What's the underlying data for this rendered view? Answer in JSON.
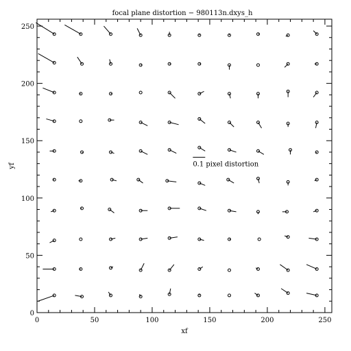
{
  "chart_data": {
    "type": "scatter",
    "title": "focal plane distortion − 980113n.dxys_h",
    "xlabel": "xf",
    "ylabel": "yf",
    "xlim": [
      0,
      256
    ],
    "ylim": [
      0,
      256
    ],
    "grid": false,
    "xticks": [
      0,
      50,
      100,
      150,
      200,
      250
    ],
    "yticks": [
      0,
      50,
      100,
      150,
      200,
      250
    ],
    "scale_bar": {
      "label": "0.1 pixel distortion",
      "length": 0.1,
      "x": 127,
      "y": 129
    },
    "vectors": [
      {
        "x": 15,
        "y": 243,
        "dx": -16,
        "dy": 10
      },
      {
        "x": 38,
        "y": 243,
        "dx": -14,
        "dy": 8
      },
      {
        "x": 64,
        "y": 243,
        "dx": -6,
        "dy": 7
      },
      {
        "x": 90,
        "y": 242,
        "dx": -3,
        "dy": 6
      },
      {
        "x": 115,
        "y": 242,
        "dx": 0,
        "dy": 3
      },
      {
        "x": 141,
        "y": 242,
        "dx": 0,
        "dy": 1
      },
      {
        "x": 167,
        "y": 242,
        "dx": 0,
        "dy": 1
      },
      {
        "x": 192,
        "y": 243,
        "dx": 1,
        "dy": 0
      },
      {
        "x": 218,
        "y": 242,
        "dx": -2,
        "dy": -1
      },
      {
        "x": 243,
        "y": 243,
        "dx": -3,
        "dy": 3
      },
      {
        "x": 15,
        "y": 218,
        "dx": -14,
        "dy": 8
      },
      {
        "x": 39,
        "y": 217,
        "dx": -4,
        "dy": 6
      },
      {
        "x": 64,
        "y": 217,
        "dx": -1,
        "dy": 4
      },
      {
        "x": 90,
        "y": 216,
        "dx": 1,
        "dy": 0
      },
      {
        "x": 115,
        "y": 217,
        "dx": 1,
        "dy": 0
      },
      {
        "x": 141,
        "y": 217,
        "dx": 1,
        "dy": 0
      },
      {
        "x": 167,
        "y": 216,
        "dx": 0,
        "dy": -4
      },
      {
        "x": 192,
        "y": 216,
        "dx": 0,
        "dy": 0
      },
      {
        "x": 218,
        "y": 217,
        "dx": -3,
        "dy": -3
      },
      {
        "x": 243,
        "y": 217,
        "dx": -2,
        "dy": 0
      },
      {
        "x": 15,
        "y": 192,
        "dx": -10,
        "dy": 4
      },
      {
        "x": 38,
        "y": 191,
        "dx": -1,
        "dy": 0
      },
      {
        "x": 64,
        "y": 191,
        "dx": 1,
        "dy": 0
      },
      {
        "x": 90,
        "y": 192,
        "dx": 0,
        "dy": 0
      },
      {
        "x": 115,
        "y": 192,
        "dx": 5,
        "dy": -5
      },
      {
        "x": 141,
        "y": 191,
        "dx": 4,
        "dy": 2
      },
      {
        "x": 167,
        "y": 191,
        "dx": 1,
        "dy": -4
      },
      {
        "x": 192,
        "y": 191,
        "dx": 0,
        "dy": -4
      },
      {
        "x": 218,
        "y": 193,
        "dx": 0,
        "dy": -5
      },
      {
        "x": 243,
        "y": 192,
        "dx": -3,
        "dy": -4
      },
      {
        "x": 15,
        "y": 167,
        "dx": -7,
        "dy": 2
      },
      {
        "x": 38,
        "y": 167,
        "dx": 0,
        "dy": 0
      },
      {
        "x": 63,
        "y": 168,
        "dx": 4,
        "dy": 0
      },
      {
        "x": 90,
        "y": 166,
        "dx": 6,
        "dy": -3
      },
      {
        "x": 115,
        "y": 166,
        "dx": 8,
        "dy": -2
      },
      {
        "x": 141,
        "y": 169,
        "dx": 5,
        "dy": -4
      },
      {
        "x": 167,
        "y": 166,
        "dx": 4,
        "dy": -4
      },
      {
        "x": 192,
        "y": 166,
        "dx": 3,
        "dy": -5
      },
      {
        "x": 218,
        "y": 165,
        "dx": 0,
        "dy": -3
      },
      {
        "x": 243,
        "y": 166,
        "dx": -1,
        "dy": -5
      },
      {
        "x": 15,
        "y": 141,
        "dx": -4,
        "dy": 0
      },
      {
        "x": 39,
        "y": 140,
        "dx": 1,
        "dy": -1
      },
      {
        "x": 64,
        "y": 140,
        "dx": 3,
        "dy": -1
      },
      {
        "x": 90,
        "y": 141,
        "dx": 6,
        "dy": -3
      },
      {
        "x": 115,
        "y": 142,
        "dx": 6,
        "dy": -3
      },
      {
        "x": 141,
        "y": 144,
        "dx": 5,
        "dy": -3
      },
      {
        "x": 167,
        "y": 142,
        "dx": 6,
        "dy": -2
      },
      {
        "x": 192,
        "y": 141,
        "dx": 5,
        "dy": -3
      },
      {
        "x": 220,
        "y": 142,
        "dx": 0,
        "dy": -4
      },
      {
        "x": 243,
        "y": 140,
        "dx": -1,
        "dy": -1
      },
      {
        "x": 15,
        "y": 116,
        "dx": -1,
        "dy": 0
      },
      {
        "x": 38,
        "y": 115,
        "dx": -2,
        "dy": 0
      },
      {
        "x": 65,
        "y": 116,
        "dx": 4,
        "dy": -1
      },
      {
        "x": 88,
        "y": 116,
        "dx": 4,
        "dy": -3
      },
      {
        "x": 113,
        "y": 115,
        "dx": 8,
        "dy": -1
      },
      {
        "x": 141,
        "y": 113,
        "dx": 5,
        "dy": -2
      },
      {
        "x": 166,
        "y": 116,
        "dx": 5,
        "dy": -3
      },
      {
        "x": 192,
        "y": 117,
        "dx": 1,
        "dy": -4
      },
      {
        "x": 218,
        "y": 114,
        "dx": 0,
        "dy": -3
      },
      {
        "x": 243,
        "y": 116,
        "dx": -2,
        "dy": -1
      },
      {
        "x": 15,
        "y": 89,
        "dx": -3,
        "dy": -1
      },
      {
        "x": 39,
        "y": 91,
        "dx": -1,
        "dy": 0
      },
      {
        "x": 63,
        "y": 90,
        "dx": 4,
        "dy": -3
      },
      {
        "x": 90,
        "y": 89,
        "dx": 6,
        "dy": 0
      },
      {
        "x": 115,
        "y": 91,
        "dx": 9,
        "dy": 0
      },
      {
        "x": 141,
        "y": 91,
        "dx": 6,
        "dy": -2
      },
      {
        "x": 167,
        "y": 89,
        "dx": 6,
        "dy": -1
      },
      {
        "x": 192,
        "y": 88,
        "dx": 0,
        "dy": -2
      },
      {
        "x": 217,
        "y": 88,
        "dx": -4,
        "dy": 0
      },
      {
        "x": 243,
        "y": 89,
        "dx": -3,
        "dy": -1
      },
      {
        "x": 15,
        "y": 63,
        "dx": -4,
        "dy": -2
      },
      {
        "x": 38,
        "y": 64,
        "dx": 0,
        "dy": 0
      },
      {
        "x": 64,
        "y": 64,
        "dx": 4,
        "dy": 1
      },
      {
        "x": 90,
        "y": 64,
        "dx": 6,
        "dy": 1
      },
      {
        "x": 115,
        "y": 65,
        "dx": 7,
        "dy": 1
      },
      {
        "x": 141,
        "y": 64,
        "dx": 4,
        "dy": -1
      },
      {
        "x": 167,
        "y": 64,
        "dx": 1,
        "dy": 0
      },
      {
        "x": 193,
        "y": 64,
        "dx": 0,
        "dy": 0
      },
      {
        "x": 218,
        "y": 66,
        "dx": -3,
        "dy": 1
      },
      {
        "x": 243,
        "y": 64,
        "dx": -7,
        "dy": 1
      },
      {
        "x": 15,
        "y": 38,
        "dx": -10,
        "dy": 0
      },
      {
        "x": 38,
        "y": 38,
        "dx": -1,
        "dy": 0
      },
      {
        "x": 64,
        "y": 39,
        "dx": 2,
        "dy": 1
      },
      {
        "x": 90,
        "y": 37,
        "dx": 3,
        "dy": 6
      },
      {
        "x": 115,
        "y": 37,
        "dx": 4,
        "dy": 5
      },
      {
        "x": 141,
        "y": 38,
        "dx": 3,
        "dy": 2
      },
      {
        "x": 167,
        "y": 37,
        "dx": 0,
        "dy": 0
      },
      {
        "x": 192,
        "y": 38,
        "dx": -2,
        "dy": 1
      },
      {
        "x": 218,
        "y": 37,
        "dx": -7,
        "dy": 5
      },
      {
        "x": 243,
        "y": 38,
        "dx": -9,
        "dy": 4
      },
      {
        "x": 15,
        "y": 15,
        "dx": -14,
        "dy": -5
      },
      {
        "x": 39,
        "y": 14,
        "dx": -6,
        "dy": 1
      },
      {
        "x": 64,
        "y": 15,
        "dx": -2,
        "dy": 3
      },
      {
        "x": 90,
        "y": 14,
        "dx": -1,
        "dy": 2
      },
      {
        "x": 115,
        "y": 16,
        "dx": 1,
        "dy": 5
      },
      {
        "x": 141,
        "y": 15,
        "dx": 0,
        "dy": 1
      },
      {
        "x": 167,
        "y": 15,
        "dx": 0,
        "dy": 0
      },
      {
        "x": 192,
        "y": 15,
        "dx": -3,
        "dy": 2
      },
      {
        "x": 218,
        "y": 17,
        "dx": -6,
        "dy": 4
      },
      {
        "x": 243,
        "y": 15,
        "dx": -9,
        "dy": 2
      }
    ]
  }
}
